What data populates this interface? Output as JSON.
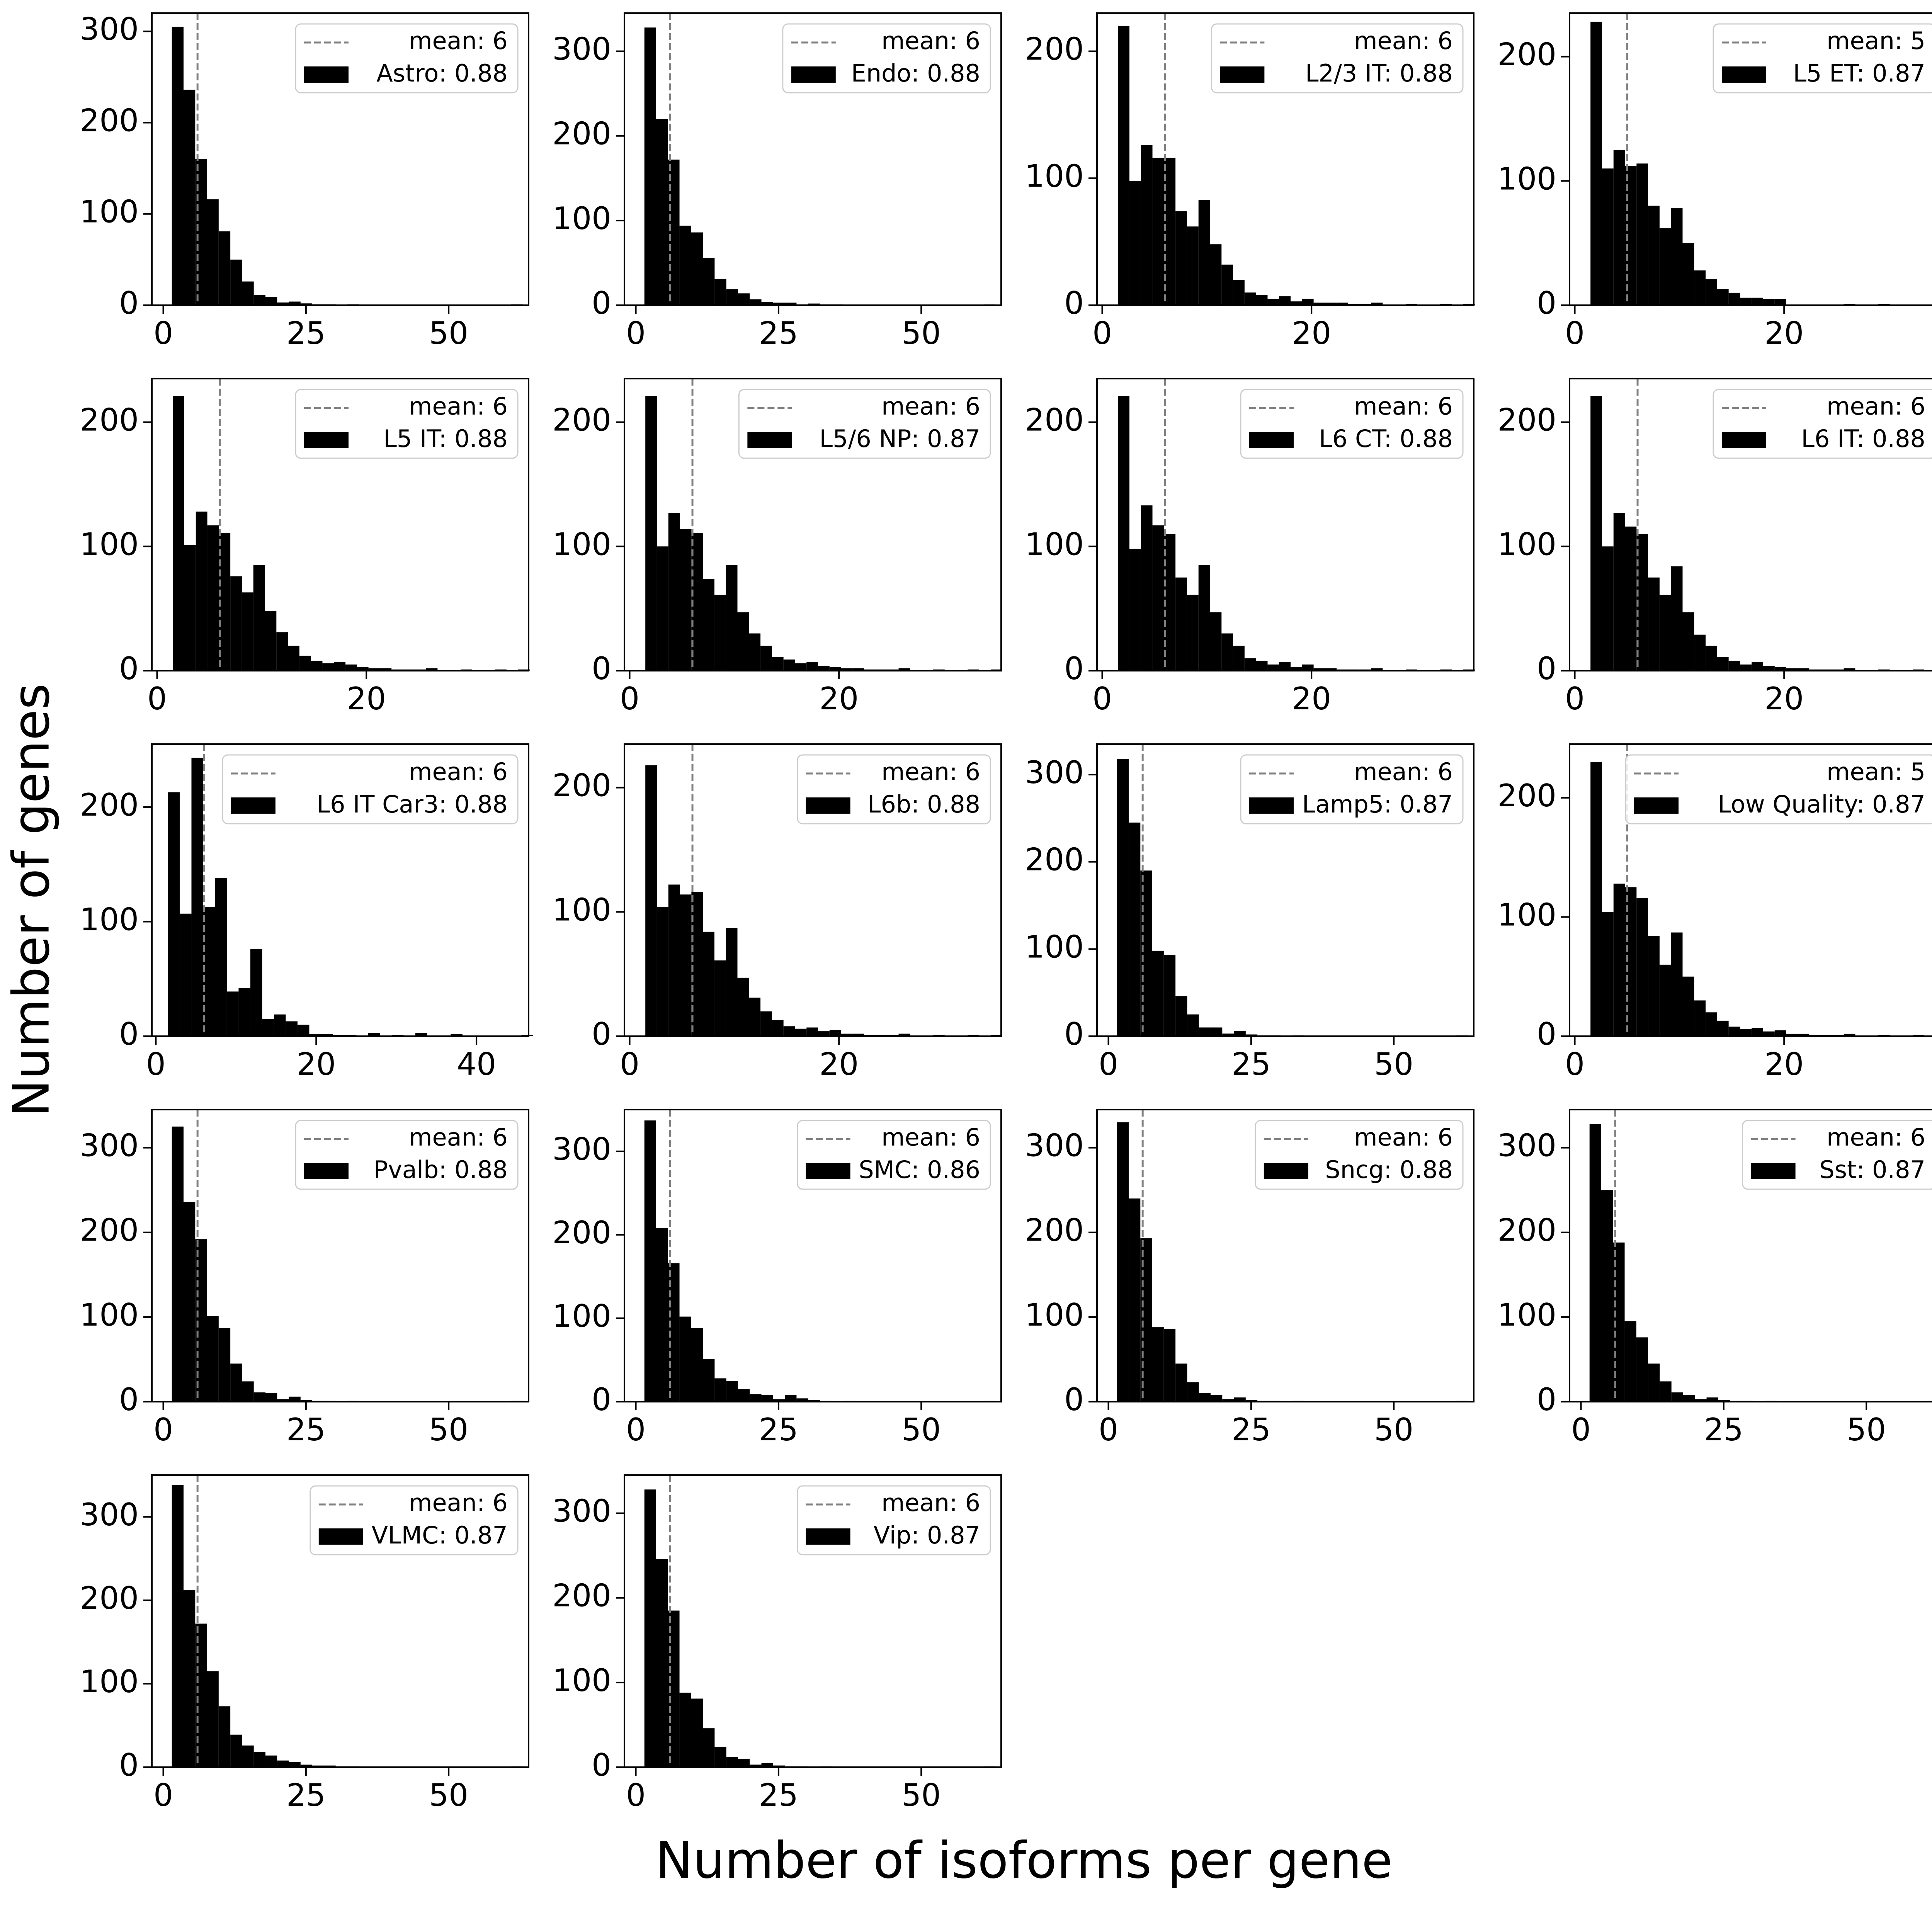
{
  "figure": {
    "ylabel": "Number of genes",
    "xlabel": "Number of isoforms per gene"
  },
  "colors": {
    "bar": "#000000",
    "mean_line": "#808080",
    "legend_edge": "#cccccc"
  },
  "chart_data": [
    {
      "type": "bar",
      "title": "",
      "legend": [
        "mean: 6",
        "Astro: 0.88"
      ],
      "mean": 6,
      "xlim": [
        -2,
        64
      ],
      "ylim": [
        0,
        320
      ],
      "xticks": [
        0,
        25,
        50
      ],
      "yticks": [
        0,
        100,
        200,
        300
      ],
      "bins": {
        "start": 1.5,
        "width": 2.05,
        "values": [
          305,
          236,
          160,
          116,
          81,
          50,
          26,
          11,
          9,
          3,
          4,
          2,
          1,
          1,
          0,
          1,
          0,
          0,
          0,
          0,
          0,
          0,
          0,
          0,
          0,
          0,
          0,
          0,
          0,
          1
        ]
      }
    },
    {
      "type": "bar",
      "title": "",
      "legend": [
        "mean: 6",
        "Endo: 0.88"
      ],
      "mean": 6,
      "xlim": [
        -2,
        64
      ],
      "ylim": [
        0,
        345
      ],
      "xticks": [
        0,
        25,
        50
      ],
      "yticks": [
        0,
        100,
        200,
        300
      ],
      "bins": {
        "start": 1.5,
        "width": 2.05,
        "values": [
          328,
          220,
          172,
          94,
          86,
          56,
          31,
          19,
          14,
          7,
          4,
          3,
          3,
          1,
          2,
          1,
          1,
          0,
          0,
          0,
          0,
          0,
          0,
          0,
          0,
          0,
          0,
          0,
          0,
          1
        ]
      }
    },
    {
      "type": "bar",
      "title": "",
      "legend": [
        "mean: 6",
        "L2/3 IT: 0.88"
      ],
      "mean": 6,
      "xlim": [
        -0.5,
        35.5
      ],
      "ylim": [
        0,
        230
      ],
      "xticks": [
        0,
        20
      ],
      "yticks": [
        0,
        100,
        200
      ],
      "bins": {
        "start": 1.5,
        "width": 1.1,
        "values": [
          220,
          98,
          126,
          116,
          116,
          74,
          62,
          83,
          48,
          32,
          20,
          10,
          8,
          5,
          7,
          3,
          5,
          2,
          2,
          2,
          1,
          1,
          2,
          0,
          0,
          1,
          0,
          0,
          1,
          0,
          1
        ]
      }
    },
    {
      "type": "bar",
      "title": "",
      "legend": [
        "mean: 5",
        "L5 ET: 0.87"
      ],
      "mean": 5,
      "xlim": [
        -0.5,
        35.5
      ],
      "ylim": [
        0,
        235
      ],
      "xticks": [
        0,
        20
      ],
      "yticks": [
        0,
        100,
        200
      ],
      "bins": {
        "start": 1.5,
        "width": 1.1,
        "values": [
          228,
          110,
          125,
          112,
          114,
          80,
          62,
          78,
          50,
          28,
          21,
          13,
          10,
          6,
          6,
          5,
          5,
          0,
          0,
          0,
          0,
          0,
          1,
          0,
          0,
          1,
          0,
          0,
          0,
          0,
          1
        ]
      }
    },
    {
      "type": "bar",
      "title": "",
      "legend": [
        "mean: 6",
        "L5 IT: 0.88"
      ],
      "mean": 6,
      "xlim": [
        -0.5,
        35.5
      ],
      "ylim": [
        0,
        235
      ],
      "xticks": [
        0,
        20
      ],
      "yticks": [
        0,
        100,
        200
      ],
      "bins": {
        "start": 1.5,
        "width": 1.1,
        "values": [
          221,
          101,
          128,
          117,
          111,
          76,
          63,
          85,
          48,
          31,
          20,
          12,
          8,
          6,
          7,
          5,
          3,
          2,
          2,
          1,
          1,
          1,
          2,
          0,
          0,
          1,
          0,
          0,
          1,
          0,
          1
        ]
      }
    },
    {
      "type": "bar",
      "title": "",
      "legend": [
        "mean: 6",
        "L5/6 NP: 0.87"
      ],
      "mean": 6,
      "xlim": [
        -0.5,
        35.5
      ],
      "ylim": [
        0,
        235
      ],
      "xticks": [
        0,
        20
      ],
      "yticks": [
        0,
        100,
        200
      ],
      "bins": {
        "start": 1.5,
        "width": 1.1,
        "values": [
          221,
          100,
          127,
          114,
          111,
          74,
          61,
          85,
          47,
          30,
          20,
          11,
          9,
          6,
          7,
          4,
          3,
          2,
          2,
          1,
          1,
          1,
          2,
          0,
          0,
          1,
          0,
          0,
          1,
          0,
          1
        ]
      }
    },
    {
      "type": "bar",
      "title": "",
      "legend": [
        "mean: 6",
        "L6 CT: 0.88"
      ],
      "mean": 6,
      "xlim": [
        -0.5,
        35.5
      ],
      "ylim": [
        0,
        235
      ],
      "xticks": [
        0,
        20
      ],
      "yticks": [
        0,
        100,
        200
      ],
      "bins": {
        "start": 1.5,
        "width": 1.1,
        "values": [
          221,
          98,
          133,
          117,
          110,
          75,
          61,
          85,
          47,
          30,
          20,
          10,
          8,
          5,
          7,
          3,
          5,
          2,
          2,
          1,
          1,
          1,
          2,
          0,
          0,
          1,
          0,
          0,
          1,
          0,
          1
        ]
      }
    },
    {
      "type": "bar",
      "title": "",
      "legend": [
        "mean: 6",
        "L6 IT: 0.88"
      ],
      "mean": 6,
      "xlim": [
        -0.5,
        35.5
      ],
      "ylim": [
        0,
        235
      ],
      "xticks": [
        0,
        20
      ],
      "yticks": [
        0,
        100,
        200
      ],
      "bins": {
        "start": 1.5,
        "width": 1.1,
        "values": [
          221,
          100,
          127,
          116,
          110,
          75,
          61,
          84,
          47,
          29,
          20,
          11,
          8,
          5,
          7,
          4,
          3,
          2,
          2,
          1,
          1,
          1,
          2,
          0,
          0,
          1,
          0,
          0,
          1,
          0,
          1
        ]
      }
    },
    {
      "type": "bar",
      "title": "",
      "legend": [
        "mean: 6",
        "L6 IT Car3: 0.88"
      ],
      "mean": 6,
      "xlim": [
        -0.5,
        46.5
      ],
      "ylim": [
        0,
        255
      ],
      "xticks": [
        0,
        20,
        40
      ],
      "yticks": [
        0,
        100,
        200
      ],
      "bins": {
        "start": 1.5,
        "width": 1.47,
        "values": [
          213,
          107,
          243,
          113,
          138,
          39,
          42,
          76,
          15,
          19,
          13,
          10,
          2,
          2,
          1,
          1,
          0,
          3,
          0,
          1,
          0,
          3,
          0,
          0,
          2,
          0,
          0,
          0,
          0,
          0,
          1
        ]
      }
    },
    {
      "type": "bar",
      "title": "",
      "legend": [
        "mean: 6",
        "L6b: 0.88"
      ],
      "mean": 6,
      "xlim": [
        -0.5,
        35.5
      ],
      "ylim": [
        0,
        235
      ],
      "xticks": [
        0,
        20
      ],
      "yticks": [
        0,
        100,
        200
      ],
      "bins": {
        "start": 1.5,
        "width": 1.1,
        "values": [
          218,
          104,
          122,
          114,
          116,
          84,
          61,
          87,
          47,
          31,
          20,
          13,
          8,
          6,
          7,
          4,
          5,
          2,
          2,
          1,
          1,
          1,
          2,
          0,
          0,
          1,
          0,
          0,
          1,
          0,
          1
        ]
      }
    },
    {
      "type": "bar",
      "title": "",
      "legend": [
        "mean: 6",
        "Lamp5: 0.87"
      ],
      "mean": 6,
      "xlim": [
        -2,
        64
      ],
      "ylim": [
        0,
        335
      ],
      "xticks": [
        0,
        25,
        50
      ],
      "yticks": [
        0,
        100,
        200,
        300
      ],
      "bins": {
        "start": 1.5,
        "width": 2.05,
        "values": [
          318,
          245,
          190,
          98,
          93,
          46,
          25,
          10,
          10,
          3,
          6,
          2,
          1,
          1,
          0,
          1,
          0,
          0,
          0,
          0,
          0,
          0,
          0,
          0,
          0,
          0,
          0,
          0,
          0,
          1
        ]
      }
    },
    {
      "type": "bar",
      "title": "",
      "legend": [
        "mean: 5",
        "Low Quality: 0.87"
      ],
      "mean": 5,
      "xlim": [
        -0.5,
        35.5
      ],
      "ylim": [
        0,
        245
      ],
      "xticks": [
        0,
        20
      ],
      "yticks": [
        0,
        100,
        200
      ],
      "bins": {
        "start": 1.5,
        "width": 1.1,
        "values": [
          230,
          104,
          128,
          125,
          116,
          84,
          60,
          87,
          50,
          30,
          20,
          13,
          8,
          6,
          7,
          4,
          5,
          2,
          2,
          1,
          1,
          1,
          2,
          0,
          0,
          1,
          0,
          0,
          1,
          0,
          1
        ]
      }
    },
    {
      "type": "bar",
      "title": "",
      "legend": [
        "mean: 6",
        "Pvalb: 0.88"
      ],
      "mean": 6,
      "xlim": [
        -2,
        64
      ],
      "ylim": [
        0,
        345
      ],
      "xticks": [
        0,
        25,
        50
      ],
      "yticks": [
        0,
        100,
        200,
        300
      ],
      "bins": {
        "start": 1.5,
        "width": 2.05,
        "values": [
          325,
          236,
          192,
          101,
          87,
          45,
          24,
          11,
          10,
          3,
          6,
          2,
          1,
          1,
          0,
          1,
          0,
          0,
          0,
          0,
          0,
          0,
          0,
          0,
          0,
          0,
          0,
          0,
          0,
          1
        ]
      }
    },
    {
      "type": "bar",
      "title": "",
      "legend": [
        "mean: 6",
        "SMC: 0.86"
      ],
      "mean": 6,
      "xlim": [
        -2,
        64
      ],
      "ylim": [
        0,
        350
      ],
      "xticks": [
        0,
        25,
        50
      ],
      "yticks": [
        0,
        100,
        200,
        300
      ],
      "bins": {
        "start": 1.5,
        "width": 2.05,
        "values": [
          337,
          208,
          166,
          102,
          88,
          51,
          28,
          25,
          15,
          9,
          8,
          3,
          8,
          4,
          2,
          1,
          0,
          1,
          0,
          0,
          0,
          0,
          0,
          0,
          0,
          0,
          0,
          0,
          0,
          1
        ]
      }
    },
    {
      "type": "bar",
      "title": "",
      "legend": [
        "mean: 6",
        "Sncg: 0.88"
      ],
      "mean": 6,
      "xlim": [
        -2,
        64
      ],
      "ylim": [
        0,
        345
      ],
      "xticks": [
        0,
        25,
        50
      ],
      "yticks": [
        0,
        100,
        200,
        300
      ],
      "bins": {
        "start": 1.5,
        "width": 2.05,
        "values": [
          330,
          240,
          193,
          88,
          86,
          45,
          23,
          10,
          8,
          3,
          5,
          2,
          1,
          1,
          0,
          1,
          0,
          0,
          0,
          0,
          0,
          0,
          0,
          0,
          0,
          0,
          0,
          0,
          0,
          1
        ]
      }
    },
    {
      "type": "bar",
      "title": "",
      "legend": [
        "mean: 6",
        "Sst: 0.87"
      ],
      "mean": 6,
      "xlim": [
        -2,
        64
      ],
      "ylim": [
        0,
        345
      ],
      "xticks": [
        0,
        25,
        50
      ],
      "yticks": [
        0,
        100,
        200,
        300
      ],
      "bins": {
        "start": 1.5,
        "width": 2.05,
        "values": [
          328,
          250,
          188,
          95,
          76,
          45,
          24,
          11,
          8,
          3,
          5,
          2,
          1,
          1,
          0,
          1,
          0,
          0,
          0,
          0,
          0,
          0,
          0,
          0,
          0,
          0,
          0,
          0,
          0,
          1
        ]
      }
    },
    {
      "type": "bar",
      "title": "",
      "legend": [
        "mean: 6",
        "VLMC: 0.87"
      ],
      "mean": 6,
      "xlim": [
        -2,
        64
      ],
      "ylim": [
        0,
        350
      ],
      "xticks": [
        0,
        25,
        50
      ],
      "yticks": [
        0,
        100,
        200,
        300
      ],
      "bins": {
        "start": 1.5,
        "width": 2.05,
        "values": [
          338,
          212,
          172,
          115,
          73,
          39,
          26,
          18,
          14,
          8,
          6,
          3,
          2,
          2,
          1,
          1,
          0,
          0,
          0,
          0,
          0,
          0,
          0,
          0,
          0,
          0,
          0,
          0,
          0,
          1
        ]
      }
    },
    {
      "type": "bar",
      "title": "",
      "legend": [
        "mean: 6",
        "Vip: 0.87"
      ],
      "mean": 6,
      "xlim": [
        -2,
        64
      ],
      "ylim": [
        0,
        345
      ],
      "xticks": [
        0,
        25,
        50
      ],
      "yticks": [
        0,
        100,
        200,
        300
      ],
      "bins": {
        "start": 1.5,
        "width": 2.05,
        "values": [
          328,
          246,
          185,
          88,
          81,
          46,
          24,
          12,
          10,
          3,
          5,
          2,
          1,
          1,
          0,
          1,
          0,
          0,
          0,
          0,
          0,
          0,
          0,
          0,
          0,
          0,
          0,
          0,
          0,
          1
        ]
      }
    }
  ]
}
